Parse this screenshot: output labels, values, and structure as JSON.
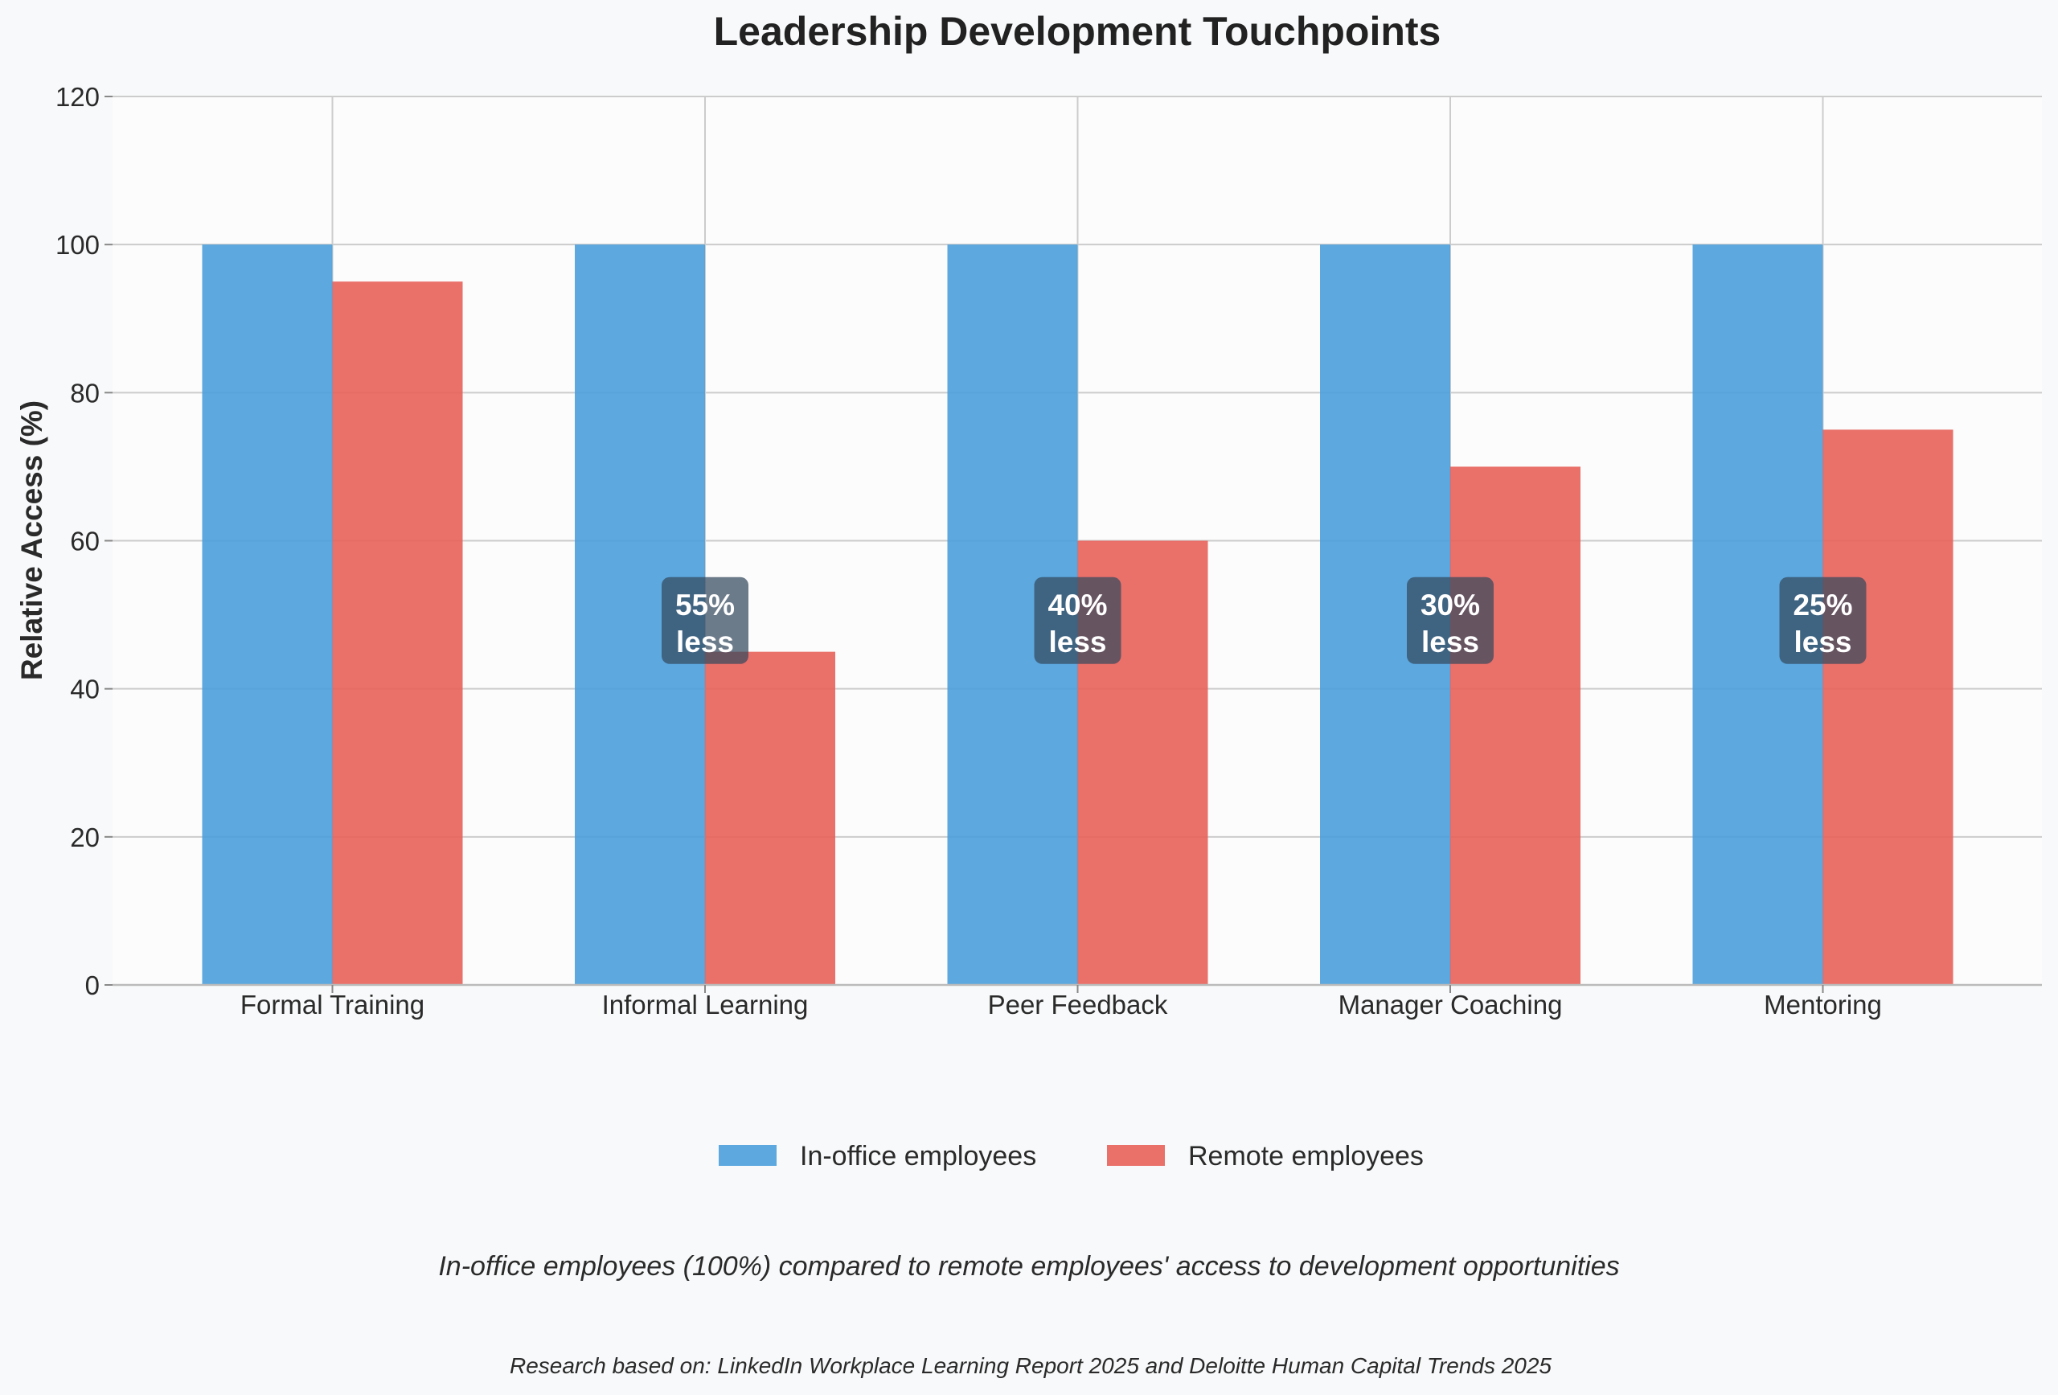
{
  "chart_data": {
    "type": "bar",
    "title": "Leadership Development Touchpoints",
    "xlabel": "",
    "ylabel": "Relative Access (%)",
    "ylim": [
      0,
      120
    ],
    "yticks": [
      0,
      20,
      40,
      60,
      80,
      100,
      120
    ],
    "grid": true,
    "legend_position": "bottom-center",
    "categories": [
      "Formal Training",
      "Informal Learning",
      "Peer Feedback",
      "Manager Coaching",
      "Mentoring"
    ],
    "series": [
      {
        "name": "In-office employees",
        "color": "#4a9fdc",
        "values": [
          100,
          100,
          100,
          100,
          100
        ]
      },
      {
        "name": "Remote employees",
        "color": "#e8605a",
        "values": [
          95,
          45,
          60,
          70,
          75
        ]
      }
    ],
    "annotations": [
      {
        "category": "Informal Learning",
        "line1": "55%",
        "line2": "less",
        "y": 49
      },
      {
        "category": "Peer Feedback",
        "line1": "40%",
        "line2": "less",
        "y": 49
      },
      {
        "category": "Manager Coaching",
        "line1": "30%",
        "line2": "less",
        "y": 49
      },
      {
        "category": "Mentoring",
        "line1": "25%",
        "line2": "less",
        "y": 49
      }
    ],
    "subtitle": "In-office employees (100%) compared to remote employees' access to development opportunities",
    "source_note": "Research based on: LinkedIn Workplace Learning Report 2025 and Deloitte Human Capital Trends 2025"
  }
}
